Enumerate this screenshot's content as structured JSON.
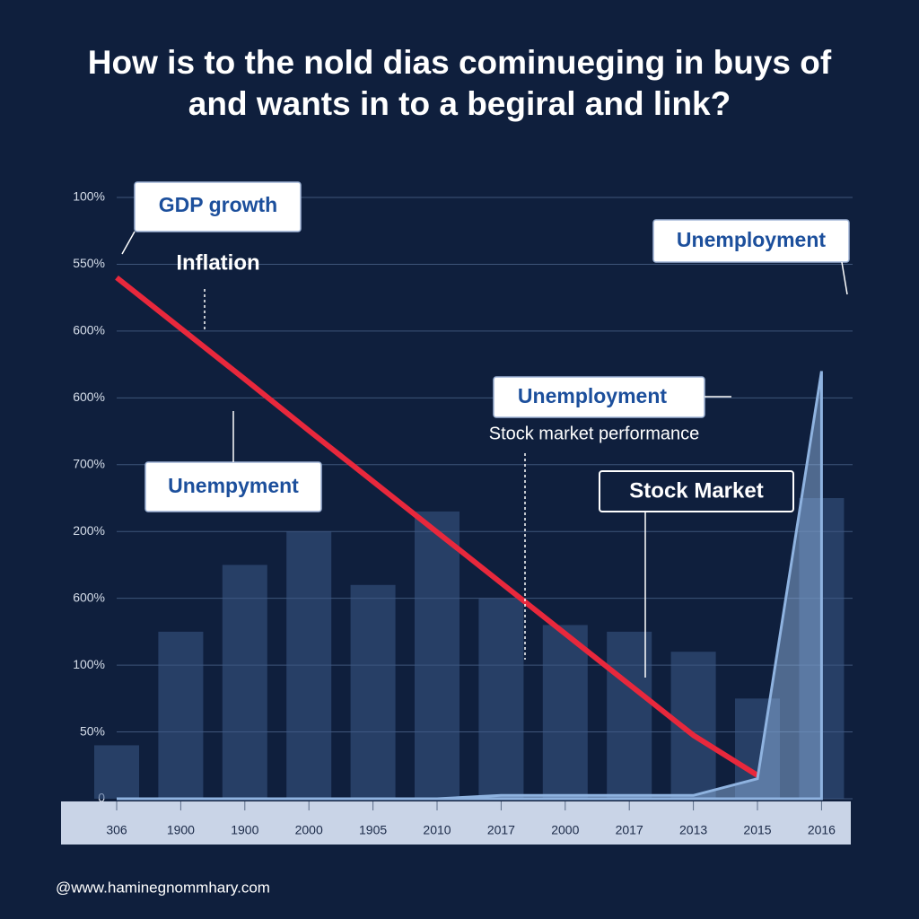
{
  "chart_data": {
    "type": "line",
    "title": [
      "How is to the nold dias cominueging in buys of",
      "and wants in to a begiral and link?"
    ],
    "categories": [
      "306",
      "1900",
      "1900",
      "2000",
      "1905",
      "2010",
      "2017",
      "2000",
      "2017",
      "2013",
      "2015",
      "2016"
    ],
    "ylim": [
      0,
      9
    ],
    "yticks": [
      0,
      {
        "value": 1,
        "label": "50%"
      },
      {
        "value": 2,
        "label": "100%"
      },
      {
        "value": 3,
        "label": "600%"
      },
      {
        "value": 4,
        "label": "200%"
      },
      {
        "value": 5,
        "label": "700%"
      },
      {
        "value": 6,
        "label": "600%"
      },
      {
        "value": 7,
        "label": "600%"
      },
      {
        "value": 8,
        "label": "550%"
      },
      {
        "value": 9,
        "label": "100%"
      }
    ],
    "grid": true,
    "series": [
      {
        "type": "bar",
        "color": "#3c5a88",
        "values": [
          0.8,
          2.5,
          3.5,
          4.0,
          3.2,
          4.3,
          3.0,
          2.6,
          2.5,
          2.2,
          1.5,
          4.5
        ]
      },
      {
        "type": "line",
        "color": "#e8283c",
        "values": [
          7.8,
          7.04,
          6.28,
          5.51,
          4.75,
          3.99,
          3.23,
          2.47,
          1.71,
          0.95,
          0.35,
          null
        ]
      },
      {
        "type": "area",
        "color": "#8fb3e0",
        "values": [
          0,
          0,
          0,
          0,
          0,
          0,
          0.05,
          0.05,
          0.05,
          0.05,
          0.3,
          6.4
        ]
      }
    ],
    "annotations": [
      "GDP growth",
      "Inflation",
      "Unemployment",
      "Unemployment",
      "Stock market performance",
      "Unempyment",
      "Stock  Market"
    ],
    "source": "@www.haminegnommhary.com"
  }
}
